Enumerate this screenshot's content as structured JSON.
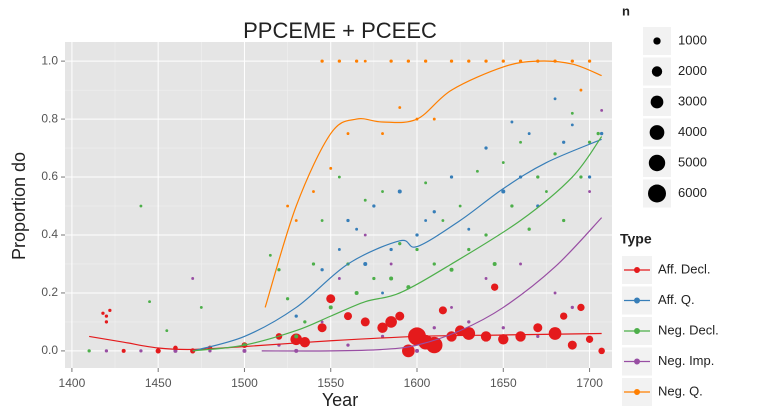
{
  "chart_data": {
    "type": "scatter",
    "title": "PPCEME + PCEEC",
    "x_label": "Year",
    "y_label": "Proportion do",
    "xlim": [
      1396,
      1713
    ],
    "ylim": [
      -0.059,
      1.066
    ],
    "xticks": [
      1400,
      1450,
      1500,
      1550,
      1600,
      1650,
      1700
    ],
    "yticks": [
      {
        "value": 0,
        "label": "0.0"
      },
      0.2,
      0.4,
      0.6,
      0.8,
      {
        "value": 1,
        "label": "1.0"
      }
    ],
    "grid": true,
    "size_legend": {
      "title": "n",
      "values": [
        1000,
        2000,
        3000,
        4000,
        5000,
        6000
      ]
    },
    "legend_title": "Type",
    "series": [
      {
        "name": "Aff. Decl.",
        "color": "#e41a1c",
        "x": [
          1418,
          1420,
          1422,
          1420,
          1430,
          1450,
          1460,
          1470,
          1480,
          1500,
          1520,
          1530,
          1535,
          1545,
          1550,
          1560,
          1570,
          1580,
          1585,
          1590,
          1595,
          1600,
          1605,
          1610,
          1615,
          1620,
          1625,
          1630,
          1640,
          1645,
          1650,
          1660,
          1670,
          1680,
          1685,
          1690,
          1695,
          1700,
          1707
        ],
        "values": [
          0.13,
          0.12,
          0.14,
          0.1,
          0.0,
          0.0,
          0.01,
          0.0,
          0.01,
          0.02,
          0.05,
          0.04,
          0.03,
          0.08,
          0.18,
          0.12,
          0.1,
          0.08,
          0.1,
          0.12,
          0.0,
          0.05,
          0.03,
          0.02,
          0.14,
          0.05,
          0.07,
          0.06,
          0.05,
          0.22,
          0.04,
          0.05,
          0.08,
          0.06,
          0.12,
          0.02,
          0.15,
          0.04,
          0.0
        ],
        "sizes": [
          200,
          200,
          200,
          200,
          300,
          500,
          400,
          500,
          400,
          600,
          800,
          2500,
          2000,
          1500,
          1500,
          1200,
          1500,
          2000,
          2500,
          1500,
          3000,
          6000,
          4000,
          5000,
          1200,
          2000,
          2000,
          3000,
          2000,
          1000,
          2000,
          2000,
          1500,
          3000,
          1000,
          1500,
          1000,
          1000,
          800
        ],
        "trend_x": [
          1410,
          1430,
          1450,
          1470,
          1500,
          1550,
          1600,
          1650,
          1707
        ],
        "trend_values": [
          0.05,
          0.03,
          0.01,
          0.005,
          0.015,
          0.035,
          0.05,
          0.055,
          0.06
        ]
      },
      {
        "name": "Aff. Q.",
        "color": "#377eb8",
        "x": [
          1530,
          1545,
          1555,
          1560,
          1565,
          1570,
          1575,
          1580,
          1585,
          1590,
          1600,
          1605,
          1610,
          1620,
          1630,
          1640,
          1650,
          1655,
          1660,
          1665,
          1670,
          1680,
          1685,
          1690,
          1700,
          1707
        ],
        "values": [
          0.12,
          0.28,
          0.35,
          0.45,
          0.42,
          0.3,
          0.5,
          0.2,
          0.35,
          0.55,
          0.4,
          0.45,
          0.48,
          0.6,
          0.42,
          0.7,
          0.55,
          0.79,
          0.6,
          0.75,
          0.5,
          0.87,
          0.72,
          0.78,
          0.6,
          0.75
        ],
        "sizes": [
          200,
          200,
          150,
          200,
          150,
          300,
          200,
          150,
          200,
          300,
          200,
          150,
          200,
          200,
          150,
          200,
          300,
          150,
          200,
          150,
          200,
          150,
          200,
          150,
          200,
          200
        ],
        "trend_x": [
          1470,
          1500,
          1530,
          1560,
          1590,
          1600,
          1625,
          1650,
          1675,
          1707
        ],
        "trend_values": [
          0.0,
          0.05,
          0.15,
          0.3,
          0.38,
          0.36,
          0.45,
          0.56,
          0.65,
          0.73
        ]
      },
      {
        "name": "Neg. Decl.",
        "color": "#4daf4a",
        "x": [
          1410,
          1440,
          1445,
          1455,
          1460,
          1475,
          1500,
          1515,
          1520,
          1525,
          1530,
          1535,
          1540,
          1545,
          1550,
          1555,
          1560,
          1565,
          1570,
          1575,
          1580,
          1585,
          1590,
          1595,
          1600,
          1605,
          1610,
          1615,
          1620,
          1625,
          1630,
          1635,
          1640,
          1645,
          1650,
          1655,
          1660,
          1665,
          1670,
          1675,
          1680,
          1685,
          1690,
          1695,
          1700,
          1705
        ],
        "values": [
          0,
          0.5,
          0.17,
          0.07,
          0.0,
          0.15,
          0.02,
          0.33,
          0.28,
          0.18,
          0.05,
          0.1,
          0.3,
          0.45,
          0.15,
          0.6,
          0.3,
          0.2,
          0.52,
          0.25,
          0.55,
          0.25,
          0.37,
          0.22,
          0.35,
          0.58,
          0.3,
          0.45,
          0.28,
          0.5,
          0.35,
          0.62,
          0.4,
          0.3,
          0.65,
          0.5,
          0.72,
          0.42,
          0.6,
          0.55,
          0.68,
          0.45,
          0.82,
          0.6,
          0.72,
          0.75
        ],
        "sizes": [
          200,
          150,
          150,
          150,
          200,
          150,
          300,
          150,
          200,
          200,
          300,
          200,
          200,
          150,
          300,
          150,
          200,
          300,
          150,
          200,
          150,
          300,
          200,
          300,
          200,
          150,
          200,
          150,
          300,
          150,
          200,
          150,
          200,
          300,
          150,
          200,
          150,
          200,
          200,
          150,
          200,
          200,
          150,
          200,
          200,
          200
        ],
        "trend_x": [
          1470,
          1500,
          1530,
          1550,
          1570,
          1590,
          1620,
          1660,
          1690,
          1707
        ],
        "trend_values": [
          0.0,
          0.02,
          0.07,
          0.12,
          0.17,
          0.2,
          0.3,
          0.45,
          0.6,
          0.74
        ]
      },
      {
        "name": "Neg. Imp.",
        "color": "#984ea3",
        "x": [
          1420,
          1440,
          1460,
          1470,
          1480,
          1500,
          1520,
          1530,
          1545,
          1555,
          1560,
          1570,
          1580,
          1585,
          1600,
          1610,
          1620,
          1630,
          1640,
          1650,
          1660,
          1670,
          1680,
          1690,
          1700,
          1707
        ],
        "values": [
          0,
          0,
          0,
          0.25,
          0,
          0,
          0.02,
          0,
          0.1,
          0.25,
          0.02,
          0.4,
          0.05,
          0.3,
          0,
          0.08,
          0.15,
          0.1,
          0.25,
          0.08,
          0.3,
          0.05,
          0.2,
          0.15,
          0.55,
          0.83
        ],
        "sizes": [
          200,
          200,
          300,
          150,
          200,
          300,
          200,
          300,
          150,
          150,
          200,
          150,
          200,
          150,
          300,
          200,
          150,
          200,
          150,
          200,
          150,
          200,
          150,
          200,
          150,
          150
        ],
        "trend_x": [
          1510,
          1550,
          1580,
          1600,
          1625,
          1650,
          1680,
          1707
        ],
        "trend_values": [
          0.0,
          0.0,
          0.005,
          0.02,
          0.07,
          0.15,
          0.29,
          0.46
        ]
      },
      {
        "name": "Neg. Q.",
        "color": "#ff7f00",
        "x": [
          1525,
          1530,
          1540,
          1545,
          1550,
          1555,
          1560,
          1565,
          1570,
          1580,
          1585,
          1590,
          1595,
          1600,
          1605,
          1610,
          1620,
          1630,
          1640,
          1650,
          1660,
          1670,
          1680,
          1690,
          1695,
          1700
        ],
        "values": [
          0.5,
          0.45,
          0.55,
          1,
          0.63,
          1,
          0.75,
          1,
          1,
          0.75,
          1,
          0.84,
          1,
          0.8,
          1,
          0.8,
          1,
          1,
          1,
          1,
          1,
          1,
          1,
          1,
          0.9,
          1
        ],
        "sizes": [
          150,
          150,
          150,
          200,
          150,
          200,
          150,
          200,
          150,
          150,
          200,
          150,
          200,
          150,
          200,
          150,
          200,
          200,
          200,
          200,
          200,
          200,
          200,
          200,
          150,
          200
        ],
        "trend_x": [
          1512,
          1530,
          1550,
          1565,
          1580,
          1600,
          1620,
          1650,
          1670,
          1690,
          1707
        ],
        "trend_values": [
          0.15,
          0.5,
          0.75,
          0.8,
          0.79,
          0.8,
          0.9,
          0.98,
          1.0,
          0.99,
          0.95
        ]
      }
    ]
  }
}
